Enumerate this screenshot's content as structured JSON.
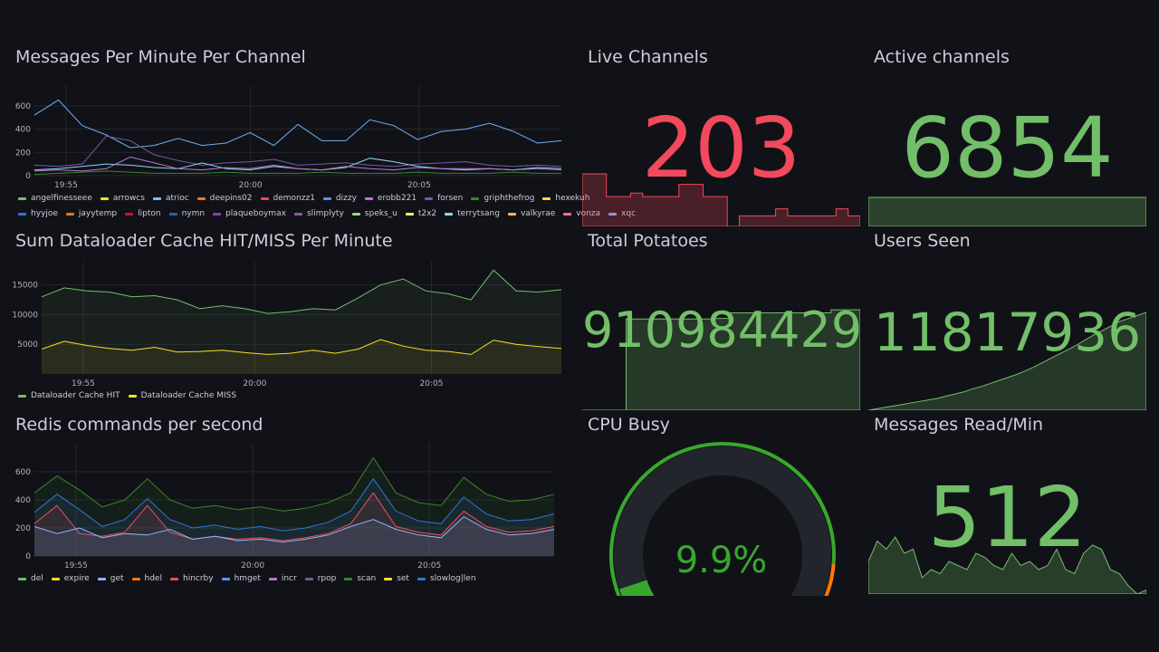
{
  "colors": {
    "green": "#73bf69",
    "red": "#f2495c",
    "yellow": "#fade2a",
    "blue": "#5794f2",
    "orange": "#ff780a"
  },
  "messages_panel": {
    "title": "Messages Per Minute Per Channel",
    "legend": [
      {
        "name": "angelfinesseee",
        "color": "#73bf69"
      },
      {
        "name": "arrowcs",
        "color": "#fade2a"
      },
      {
        "name": "atrioc",
        "color": "#8ab8ff"
      },
      {
        "name": "deepins02",
        "color": "#ff780a"
      },
      {
        "name": "demonzz1",
        "color": "#f2495c"
      },
      {
        "name": "dizzy",
        "color": "#5794f2"
      },
      {
        "name": "erobb221",
        "color": "#b877d9"
      },
      {
        "name": "forsen",
        "color": "#705da0"
      },
      {
        "name": "griphthefrog",
        "color": "#37872d"
      },
      {
        "name": "hexekuh",
        "color": "#fade2a"
      },
      {
        "name": "hyyjoe",
        "color": "#3274d9"
      },
      {
        "name": "jayytemp",
        "color": "#e0752d"
      },
      {
        "name": "lipton",
        "color": "#c4162a"
      },
      {
        "name": "nymn",
        "color": "#1f60c4"
      },
      {
        "name": "plaqueboymax",
        "color": "#8f3bb8"
      },
      {
        "name": "slimplyty",
        "color": "#8e5aa0"
      },
      {
        "name": "speks_u",
        "color": "#96d98d"
      },
      {
        "name": "t2x2",
        "color": "#ffee52"
      },
      {
        "name": "terrytsang",
        "color": "#8ad8f5"
      },
      {
        "name": "valkyrae",
        "color": "#ffb357"
      },
      {
        "name": "vonza",
        "color": "#ff7383"
      },
      {
        "name": "xqc",
        "color": "#6cb0f5"
      }
    ]
  },
  "cache_panel": {
    "title": "Sum Dataloader Cache HIT/MISS Per Minute",
    "legend": [
      {
        "name": "Dataloader Cache HIT",
        "color": "#73bf69"
      },
      {
        "name": "Dataloader Cache MISS",
        "color": "#fade2a"
      }
    ]
  },
  "redis_panel": {
    "title": "Redis commands per second",
    "legend": [
      {
        "name": "del",
        "color": "#73bf69"
      },
      {
        "name": "expire",
        "color": "#fade2a"
      },
      {
        "name": "get",
        "color": "#8ab8ff"
      },
      {
        "name": "hdel",
        "color": "#ff780a"
      },
      {
        "name": "hincrby",
        "color": "#f2495c"
      },
      {
        "name": "hmget",
        "color": "#5794f2"
      },
      {
        "name": "incr",
        "color": "#b877d9"
      },
      {
        "name": "rpop",
        "color": "#705da0"
      },
      {
        "name": "scan",
        "color": "#37872d"
      },
      {
        "name": "set",
        "color": "#fade2a"
      },
      {
        "name": "slowlog|len",
        "color": "#3274d9"
      }
    ]
  },
  "stats": {
    "live_channels": {
      "title": "Live Channels",
      "value": "203"
    },
    "active_channels": {
      "title": "Active channels",
      "value": "6854"
    },
    "total_potatoes": {
      "title": "Total Potatoes",
      "value": "910984429"
    },
    "users_seen": {
      "title": "Users Seen",
      "value": "11817936"
    },
    "cpu_busy": {
      "title": "CPU Busy",
      "value": "9.9%",
      "percent": 9.9
    },
    "messages_read": {
      "title": "Messages Read/Min",
      "value": "512"
    }
  },
  "chart_data": [
    {
      "type": "line",
      "title": "Messages Per Minute Per Channel",
      "ylim": [
        0,
        700
      ],
      "y_ticks": [
        "600",
        "400",
        "200",
        "0"
      ],
      "x_ticks": [
        "19:55",
        "20:00",
        "20:05"
      ],
      "series": [
        {
          "name": "xqc",
          "values": [
            520,
            650,
            430,
            350,
            240,
            260,
            320,
            260,
            280,
            370,
            260,
            440,
            300,
            300,
            480,
            430,
            310,
            380,
            400,
            450,
            380,
            280,
            300
          ]
        },
        {
          "name": "forsen",
          "values": [
            90,
            80,
            100,
            340,
            300,
            180,
            130,
            90,
            110,
            120,
            140,
            90,
            100,
            110,
            90,
            80,
            100,
            110,
            120,
            90,
            80,
            90,
            80
          ]
        },
        {
          "name": "terrytsang",
          "values": [
            50,
            60,
            80,
            100,
            90,
            70,
            60,
            110,
            60,
            50,
            80,
            60,
            50,
            70,
            150,
            120,
            80,
            60,
            50,
            60,
            50,
            70,
            60
          ]
        },
        {
          "name": "erobb221",
          "values": [
            40,
            50,
            40,
            60,
            160,
            110,
            60,
            50,
            70,
            60,
            90,
            60,
            50,
            80,
            60,
            50,
            70,
            60,
            60,
            60,
            50,
            60,
            50
          ]
        },
        {
          "name": "griphthefrog",
          "values": [
            10,
            20,
            30,
            40,
            30,
            20,
            20,
            20,
            30,
            20,
            20,
            20,
            30,
            20,
            20,
            20,
            30,
            20,
            20,
            20,
            30,
            20,
            20
          ]
        }
      ]
    },
    {
      "type": "area",
      "title": "Sum Dataloader Cache HIT/MISS Per Minute",
      "ylim": [
        0,
        18000
      ],
      "y_ticks": [
        "15000",
        "10000",
        "5000"
      ],
      "x_ticks": [
        "19:55",
        "20:00",
        "20:05"
      ],
      "series": [
        {
          "name": "Dataloader Cache HIT",
          "values": [
            13000,
            14500,
            14000,
            13800,
            13000,
            13200,
            12500,
            11000,
            11500,
            11000,
            10200,
            10500,
            11000,
            10800,
            12800,
            15000,
            16000,
            14000,
            13500,
            12500,
            17500,
            14000,
            13800,
            14200
          ]
        },
        {
          "name": "Dataloader Cache MISS",
          "values": [
            4200,
            5500,
            4800,
            4300,
            4000,
            4500,
            3700,
            3800,
            4000,
            3600,
            3300,
            3500,
            4000,
            3500,
            4200,
            5800,
            4700,
            4000,
            3800,
            3300,
            5700,
            5000,
            4600,
            4300
          ]
        }
      ]
    },
    {
      "type": "area",
      "title": "Redis commands per second",
      "ylim": [
        0,
        800
      ],
      "y_ticks": [
        "600",
        "400",
        "200",
        "0"
      ],
      "x_ticks": [
        "19:55",
        "20:00",
        "20:05"
      ],
      "series": [
        {
          "name": "scan",
          "values": [
            450,
            570,
            470,
            350,
            400,
            550,
            400,
            340,
            360,
            330,
            350,
            320,
            340,
            380,
            450,
            700,
            450,
            380,
            360,
            560,
            440,
            390,
            400,
            440
          ]
        },
        {
          "name": "slowlog|len",
          "values": [
            310,
            440,
            330,
            210,
            260,
            410,
            260,
            200,
            220,
            190,
            210,
            180,
            200,
            240,
            320,
            550,
            320,
            250,
            230,
            420,
            300,
            250,
            260,
            300
          ]
        },
        {
          "name": "hincrby",
          "values": [
            230,
            360,
            160,
            140,
            170,
            360,
            170,
            120,
            140,
            120,
            130,
            110,
            130,
            160,
            230,
            450,
            210,
            170,
            150,
            320,
            210,
            170,
            180,
            210
          ]
        },
        {
          "name": "get",
          "values": [
            210,
            160,
            200,
            130,
            160,
            150,
            190,
            120,
            140,
            110,
            120,
            100,
            120,
            150,
            210,
            260,
            190,
            150,
            130,
            280,
            190,
            150,
            160,
            190
          ]
        }
      ]
    },
    {
      "type": "area",
      "title": "Live Channels sparkline",
      "values": [
        300,
        300,
        170,
        170,
        190,
        170,
        170,
        170,
        240,
        240,
        170,
        170,
        0,
        60,
        60,
        60,
        100,
        60,
        60,
        60,
        60,
        100,
        60,
        60
      ]
    },
    {
      "type": "area",
      "title": "Active channels sparkline",
      "values": [
        6854,
        6854,
        6854,
        6854,
        6854,
        6854,
        6854,
        6854,
        6854,
        6854
      ]
    },
    {
      "type": "area",
      "title": "Total Potatoes sparkline",
      "values": [
        0,
        0,
        0,
        900,
        900,
        900,
        900,
        900,
        900,
        905,
        960,
        960,
        960,
        960,
        960,
        960,
        960,
        990,
        990,
        1000
      ]
    },
    {
      "type": "area",
      "title": "Users Seen sparkline",
      "values": [
        0,
        5,
        10,
        15,
        20,
        25,
        30,
        35,
        40,
        48,
        55,
        62,
        72,
        80,
        90,
        100,
        110,
        120,
        132,
        145,
        160,
        175,
        190,
        205,
        220,
        238,
        255,
        270,
        285,
        300,
        310,
        320,
        330
      ]
    },
    {
      "type": "area",
      "title": "Messages Read/Min sparkline",
      "values": [
        400,
        650,
        550,
        700,
        500,
        550,
        200,
        300,
        250,
        400,
        350,
        300,
        500,
        450,
        350,
        300,
        500,
        350,
        400,
        300,
        350,
        550,
        300,
        250,
        500,
        600,
        550,
        300,
        250,
        100,
        0,
        50
      ]
    }
  ]
}
